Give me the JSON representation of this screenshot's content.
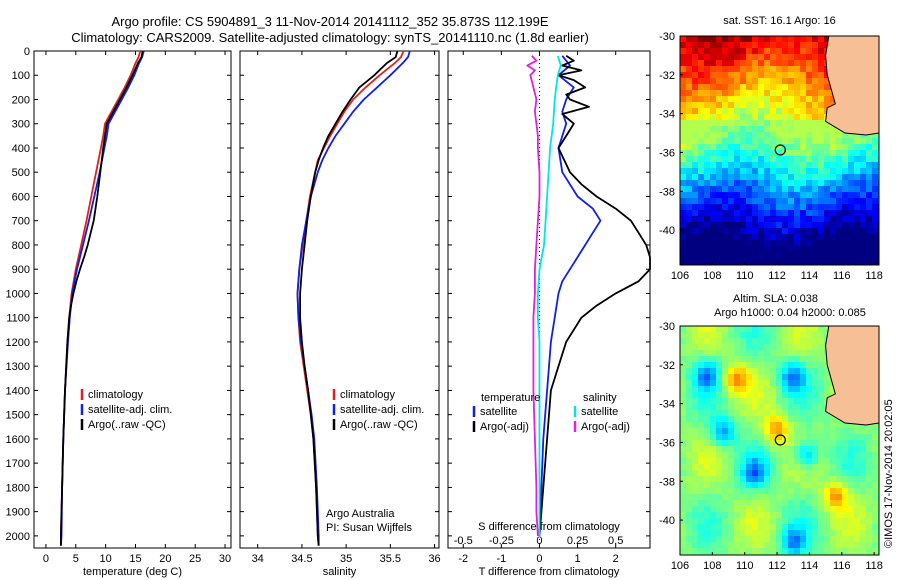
{
  "header": {
    "line1": "Argo profile: CS 5904891_3 11-Nov-2014 20141112_352 35.873S 112.199E",
    "line2": "Climatology: CARS2009. Satellite-adjusted climatology: synTS_20141110.nc (1.8d earlier)"
  },
  "footer_vertical": "©IMOS 17-Nov-2014 20:02:05",
  "colors": {
    "climatology": "#e02020",
    "satellite": "#1020e0",
    "argo": "#000000",
    "salinity_satellite": "#00e5e5",
    "salinity_argo": "#e020e0",
    "land": "#f7bf95",
    "marker": "#000000"
  },
  "chart_data": [
    {
      "type": "line",
      "panel": "temperature",
      "xlabel": "temperature (deg C)",
      "xlim": [
        -2,
        31
      ],
      "xticks": [
        0,
        5,
        10,
        15,
        20,
        25,
        30
      ],
      "ylim": [
        2050,
        0
      ],
      "yticks": [
        0,
        100,
        200,
        300,
        400,
        500,
        600,
        700,
        800,
        900,
        1000,
        1100,
        1200,
        1300,
        1400,
        1500,
        1600,
        1700,
        1800,
        1900,
        2000
      ],
      "legend": [
        "climatology",
        "satellite-adj. clim.",
        "Argo(..raw -QC)"
      ],
      "legend_position": "lower-middle",
      "grid": false,
      "series": [
        {
          "name": "climatology",
          "color_key": "climatology",
          "depth": [
            0,
            25,
            50,
            100,
            150,
            200,
            250,
            300,
            350,
            400,
            500,
            600,
            700,
            800,
            900,
            1000,
            1100,
            1200,
            1400,
            1600,
            1800,
            2000,
            2040
          ],
          "values": [
            15.8,
            15.5,
            15.0,
            14.2,
            13.2,
            12.1,
            11.0,
            9.9,
            9.6,
            9.2,
            8.4,
            7.6,
            6.8,
            5.9,
            5.0,
            4.3,
            3.9,
            3.6,
            3.2,
            2.9,
            2.7,
            2.5,
            2.5
          ]
        },
        {
          "name": "satellite-adj. clim.",
          "color_key": "satellite",
          "depth": [
            0,
            25,
            50,
            100,
            150,
            200,
            250,
            300,
            350,
            400,
            500,
            600,
            700,
            800,
            900,
            1000,
            1100,
            1200,
            1400,
            1600,
            1800,
            2000,
            2040
          ],
          "values": [
            16.4,
            16.1,
            15.6,
            14.8,
            13.8,
            12.7,
            11.6,
            10.5,
            10.2,
            9.8,
            9.0,
            8.1,
            7.2,
            6.2,
            5.2,
            4.4,
            4.0,
            3.7,
            3.2,
            2.9,
            2.7,
            2.6,
            2.5
          ]
        },
        {
          "name": "Argo(..raw -QC)",
          "color_key": "argo",
          "depth": [
            0,
            25,
            50,
            100,
            150,
            200,
            250,
            300,
            350,
            400,
            500,
            600,
            700,
            800,
            850,
            900,
            950,
            1000,
            1050,
            1100,
            1200,
            1400,
            1600,
            1800,
            2000,
            2040
          ],
          "values": [
            16.2,
            16.0,
            15.4,
            14.5,
            13.5,
            12.4,
            11.3,
            10.2,
            9.9,
            9.6,
            9.1,
            8.6,
            8.0,
            7.0,
            6.4,
            5.7,
            5.1,
            4.6,
            4.2,
            3.9,
            3.6,
            3.2,
            2.9,
            2.7,
            2.5,
            2.5
          ]
        }
      ]
    },
    {
      "type": "line",
      "panel": "salinity",
      "xlabel": "salinity",
      "xlim": [
        33.8,
        36.05
      ],
      "xticks": [
        34,
        34.5,
        35,
        35.5,
        36
      ],
      "ylim": [
        2050,
        0
      ],
      "legend": [
        "climatology",
        "satellite-adj. clim.",
        "Argo(..raw -QC)"
      ],
      "legend_position": "lower-right",
      "annotation": [
        "Argo Australia",
        "PI: Susan Wijffels"
      ],
      "grid": false,
      "series": [
        {
          "name": "climatology",
          "color_key": "climatology",
          "depth": [
            0,
            25,
            50,
            100,
            150,
            200,
            250,
            300,
            350,
            400,
            450,
            500,
            600,
            700,
            800,
            900,
            1000,
            1100,
            1200,
            1300,
            1400,
            1500,
            1600,
            1800,
            2000,
            2040
          ],
          "values": [
            35.65,
            35.62,
            35.55,
            35.38,
            35.22,
            35.08,
            34.98,
            34.9,
            34.82,
            34.75,
            34.68,
            34.65,
            34.59,
            34.55,
            34.51,
            34.47,
            34.45,
            34.46,
            34.48,
            34.52,
            34.56,
            34.6,
            34.63,
            34.66,
            34.68,
            34.69
          ]
        },
        {
          "name": "satellite-adj. clim.",
          "color_key": "satellite",
          "depth": [
            0,
            25,
            50,
            100,
            150,
            200,
            250,
            300,
            350,
            400,
            450,
            500,
            600,
            700,
            800,
            900,
            1000,
            1100,
            1200,
            1300,
            1400,
            1500,
            1600,
            1800,
            2000,
            2040
          ],
          "values": [
            35.72,
            35.7,
            35.64,
            35.5,
            35.35,
            35.2,
            35.08,
            34.98,
            34.88,
            34.8,
            34.73,
            34.68,
            34.6,
            34.55,
            34.5,
            34.47,
            34.45,
            34.46,
            34.49,
            34.53,
            34.57,
            34.61,
            34.64,
            34.67,
            34.69,
            34.69
          ]
        },
        {
          "name": "Argo(..raw -QC)",
          "color_key": "argo",
          "depth": [
            0,
            25,
            50,
            100,
            150,
            200,
            250,
            300,
            350,
            400,
            450,
            500,
            600,
            700,
            800,
            900,
            1000,
            1100,
            1200,
            1300,
            1400,
            1500,
            1600,
            1800,
            2000,
            2040
          ],
          "values": [
            35.58,
            35.56,
            35.46,
            35.32,
            35.15,
            35.05,
            34.96,
            34.88,
            34.8,
            34.74,
            34.69,
            34.65,
            34.6,
            34.56,
            34.53,
            34.5,
            34.48,
            34.48,
            34.5,
            34.53,
            34.57,
            34.6,
            34.63,
            34.66,
            34.68,
            34.69
          ]
        }
      ]
    },
    {
      "type": "line",
      "panel": "differences",
      "xlabel": "T difference from climatology",
      "xlim": [
        -2.4,
        2.9
      ],
      "xticks": [
        -2,
        -1,
        0,
        1,
        2
      ],
      "xlabel_top": "S difference from climatology",
      "xticks_top": [
        "-0.5",
        "-0.25",
        "0",
        "0.25",
        "0.5"
      ],
      "ylim": [
        2050,
        0
      ],
      "zero_line": "dotted",
      "legend_temperature_title": "temperature",
      "legend_salinity_title": "salinity",
      "legend_temperature": [
        "satellite",
        "Argo(-adj)"
      ],
      "legend_salinity": [
        "satellite",
        "Argo(-adj)"
      ],
      "grid": false,
      "series": [
        {
          "name": "satellite",
          "group": "temperature",
          "color_key": "satellite",
          "depth": [
            20,
            60,
            100,
            150,
            200,
            250,
            300,
            400,
            500,
            600,
            650,
            700,
            750,
            800,
            850,
            900,
            950,
            1000,
            1100,
            1200,
            1400,
            1600,
            1800,
            2000
          ],
          "values": [
            0.6,
            0.8,
            0.5,
            0.9,
            0.7,
            0.6,
            0.7,
            0.5,
            0.6,
            1.0,
            1.4,
            1.6,
            1.4,
            1.2,
            1.0,
            0.8,
            0.6,
            0.5,
            0.4,
            0.3,
            0.2,
            0.1,
            0.05,
            0.0
          ]
        },
        {
          "name": "Argo(-adj)",
          "group": "temperature",
          "color_key": "argo",
          "depth": [
            20,
            40,
            60,
            80,
            100,
            120,
            150,
            180,
            200,
            230,
            260,
            300,
            350,
            400,
            500,
            550,
            600,
            650,
            700,
            750,
            800,
            850,
            900,
            950,
            1000,
            1050,
            1100,
            1200,
            1300,
            1400,
            1600,
            1800,
            2000
          ],
          "values": [
            0.7,
            0.9,
            0.6,
            1.1,
            0.5,
            0.9,
            1.2,
            0.7,
            0.8,
            1.3,
            0.6,
            0.9,
            0.7,
            0.5,
            0.8,
            1.1,
            1.5,
            2.0,
            2.4,
            2.6,
            2.8,
            2.9,
            2.9,
            2.6,
            2.0,
            1.5,
            1.1,
            0.7,
            0.5,
            0.3,
            0.2,
            0.1,
            0.0
          ]
        },
        {
          "name": "satellite",
          "group": "salinity",
          "color_key": "salinity_satellite",
          "depth": [
            20,
            60,
            100,
            150,
            200,
            300,
            400,
            500,
            600,
            700,
            800,
            900,
            1000,
            1100,
            1200,
            1400,
            1600,
            1800,
            2000
          ],
          "values": [
            0.12,
            0.14,
            0.12,
            0.11,
            0.1,
            0.09,
            0.07,
            0.06,
            0.05,
            0.04,
            0.03,
            0.0,
            -0.01,
            -0.01,
            0.0,
            0.0,
            0.0,
            0.0,
            0.0
          ]
        },
        {
          "name": "Argo(-adj)",
          "group": "salinity",
          "color_key": "salinity_argo",
          "depth": [
            20,
            40,
            60,
            80,
            100,
            150,
            200,
            250,
            300,
            350,
            400,
            500,
            600,
            700,
            800,
            900,
            1000,
            1100,
            1200,
            1400,
            1600,
            1800,
            1900,
            2000
          ],
          "values": [
            -0.05,
            -0.02,
            -0.08,
            -0.03,
            -0.06,
            -0.04,
            -0.02,
            -0.03,
            -0.02,
            -0.01,
            -0.01,
            0.0,
            0.0,
            -0.01,
            -0.02,
            -0.03,
            -0.03,
            -0.04,
            -0.04,
            -0.04,
            -0.03,
            -0.02,
            -0.02,
            -0.01
          ]
        }
      ]
    },
    {
      "type": "heatmap",
      "panel": "sst-map",
      "title": "sat. SST: 16.1  Argo: 16",
      "xticks": [
        "106",
        "108",
        "110",
        "112",
        "114",
        "116",
        "118"
      ],
      "yticks": [
        "-30",
        "-32",
        "-34",
        "-36",
        "-38",
        "-40"
      ],
      "xlim": [
        106,
        118.3
      ],
      "ylim": [
        -41.8,
        -30
      ],
      "float_position": {
        "lon": 112.199,
        "lat": -35.873
      },
      "colormap": "jet"
    },
    {
      "type": "heatmap",
      "panel": "sla-map",
      "title_line1": "Altim. SLA: 0.038",
      "title_line2": "Argo h1000: 0.04 h2000: 0.085",
      "xticks": [
        "106",
        "108",
        "110",
        "112",
        "114",
        "116",
        "118"
      ],
      "yticks": [
        "-30",
        "-32",
        "-34",
        "-36",
        "-38",
        "-40"
      ],
      "xlim": [
        106,
        118.3
      ],
      "ylim": [
        -41.8,
        -30
      ],
      "float_position": {
        "lon": 112.199,
        "lat": -35.873
      },
      "colormap": "jet"
    }
  ]
}
